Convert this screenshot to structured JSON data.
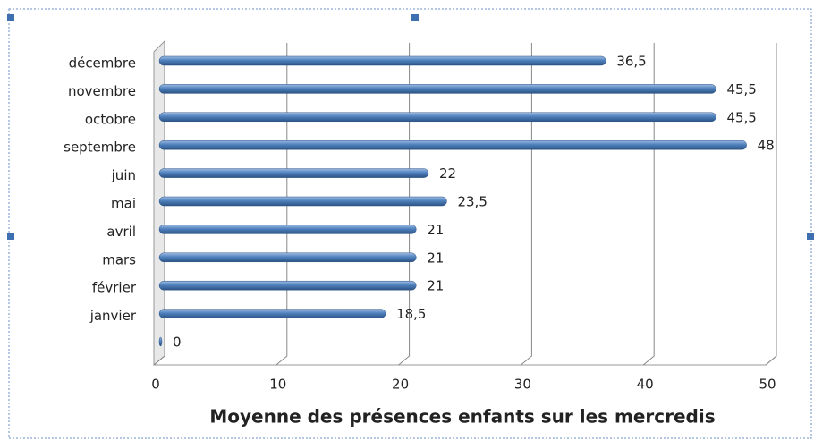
{
  "chart_data": {
    "type": "bar",
    "orientation": "horizontal",
    "x_label": "Moyenne des présences enfants sur les mercredis",
    "categories": [
      null,
      "janvier",
      "février",
      "mars",
      "avril",
      "mai",
      "juin",
      "septembre",
      "octobre",
      "novembre",
      "décembre"
    ],
    "values": [
      0,
      18.5,
      21,
      21,
      21,
      23.5,
      22,
      48,
      45.5,
      45.5,
      36.5
    ],
    "value_labels": [
      "0",
      "18,5",
      "21",
      "21",
      "21",
      "23,5",
      "22",
      "48",
      "45,5",
      "45,5",
      "36,5"
    ],
    "color": "#4f81bd",
    "xlim": [
      0,
      50
    ],
    "xticks": [
      0,
      10,
      20,
      30,
      40,
      50
    ],
    "grid": true
  }
}
